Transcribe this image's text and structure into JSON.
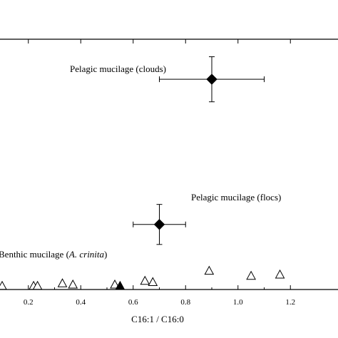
{
  "chart_data": {
    "type": "scatter",
    "xlabel": "C16:1 / C16:0",
    "xlim": [
      0.1,
      1.3
    ],
    "ylim": [
      0,
      1
    ],
    "x_ticks": [
      0.2,
      0.4,
      0.6,
      0.8,
      1.0,
      1.2
    ],
    "x_tick_labels": [
      "0.2",
      "0.4",
      "0.6",
      "0.8",
      "1.0",
      "1.2"
    ],
    "grid": false,
    "series": [
      {
        "marker": "diamond-filled",
        "color": "#000000",
        "points": [
          {
            "x": 0.9,
            "y": 0.84,
            "xerr": 0.2,
            "yerr": 0.09
          },
          {
            "x": 0.7,
            "y": 0.26,
            "xerr": 0.1,
            "yerr": 0.08
          }
        ]
      },
      {
        "marker": "triangle-open",
        "color": "#000000",
        "points": [
          {
            "x": 0.1,
            "y": 0.015
          },
          {
            "x": 0.22,
            "y": 0.015
          },
          {
            "x": 0.235,
            "y": 0.015
          },
          {
            "x": 0.33,
            "y": 0.025
          },
          {
            "x": 0.37,
            "y": 0.02
          },
          {
            "x": 0.53,
            "y": 0.02
          },
          {
            "x": 0.645,
            "y": 0.035
          },
          {
            "x": 0.675,
            "y": 0.03
          },
          {
            "x": 0.89,
            "y": 0.075
          },
          {
            "x": 1.05,
            "y": 0.055
          },
          {
            "x": 1.16,
            "y": 0.06
          }
        ]
      },
      {
        "marker": "triangle-filled",
        "color": "#000000",
        "points": [
          {
            "x": 0.55,
            "y": 0.015
          }
        ]
      }
    ],
    "annotations": [
      {
        "text": "Pelagic mucilage (clouds)",
        "x": 0.9,
        "y": 0.84
      },
      {
        "text": "Pelagic mucilage (flocs)",
        "x": 0.7,
        "y": 0.26
      },
      {
        "prefix": "Benthic mucilage (",
        "italic": "A. crinita",
        "suffix": ")",
        "x": 0.1,
        "y": 0.015
      }
    ]
  }
}
